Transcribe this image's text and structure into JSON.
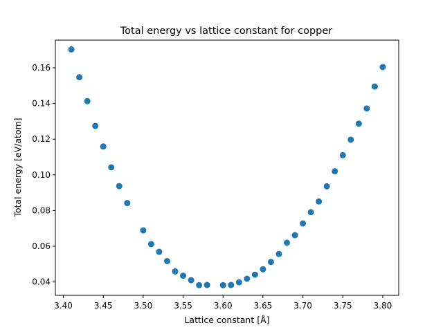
{
  "chart_data": {
    "type": "scatter",
    "title": "Total energy vs lattice constant for copper",
    "xlabel": "Lattice constant [Å]",
    "ylabel": "Total energy [eV/atom]",
    "xlim": [
      3.39,
      3.82
    ],
    "ylim": [
      0.0325,
      0.1755
    ],
    "xticks": [
      3.4,
      3.45,
      3.5,
      3.55,
      3.6,
      3.65,
      3.7,
      3.75,
      3.8
    ],
    "xtick_labels": [
      "3.40",
      "3.45",
      "3.50",
      "3.55",
      "3.60",
      "3.65",
      "3.70",
      "3.75",
      "3.80"
    ],
    "yticks": [
      0.04,
      0.06,
      0.08,
      0.1,
      0.12,
      0.14,
      0.16
    ],
    "ytick_labels": [
      "0.04",
      "0.06",
      "0.08",
      "0.10",
      "0.12",
      "0.14",
      "0.16"
    ],
    "grid": false,
    "marker_color": "#1f77b4",
    "x": [
      3.41,
      3.42,
      3.43,
      3.44,
      3.45,
      3.46,
      3.47,
      3.48,
      3.5,
      3.51,
      3.52,
      3.53,
      3.54,
      3.55,
      3.56,
      3.57,
      3.58,
      3.6,
      3.61,
      3.62,
      3.63,
      3.64,
      3.65,
      3.66,
      3.67,
      3.68,
      3.69,
      3.7,
      3.71,
      3.72,
      3.73,
      3.74,
      3.75,
      3.76,
      3.77,
      3.78,
      3.79,
      3.8
    ],
    "y": [
      0.1703,
      0.1547,
      0.1413,
      0.1274,
      0.1159,
      0.1042,
      0.0937,
      0.0842,
      0.0689,
      0.0612,
      0.0569,
      0.0517,
      0.0459,
      0.0435,
      0.041,
      0.0382,
      0.0383,
      0.0382,
      0.0383,
      0.0398,
      0.0418,
      0.0441,
      0.0471,
      0.0512,
      0.0557,
      0.062,
      0.0662,
      0.0728,
      0.0791,
      0.0851,
      0.0936,
      0.102,
      0.111,
      0.1197,
      0.1287,
      0.1372,
      0.1495,
      0.1604
    ]
  }
}
